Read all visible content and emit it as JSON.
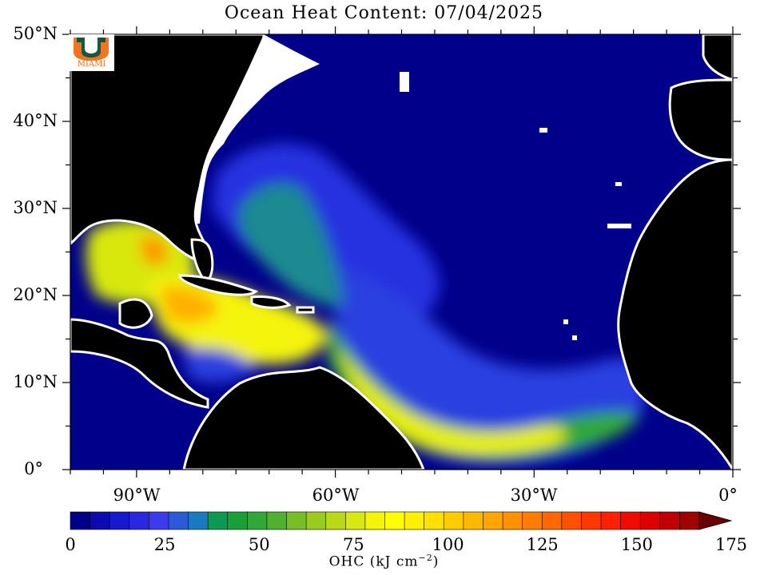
{
  "title": "Ocean Heat Content: 07/04/2025",
  "logo": {
    "text": "MIAMI",
    "primary_color": "#00543a",
    "accent_color": "#f47321"
  },
  "map": {
    "lat_range": [
      0,
      50
    ],
    "lon_range": [
      -100,
      0
    ],
    "lat_labels": [
      "50°N",
      "40°N",
      "30°N",
      "20°N",
      "10°N",
      "0°"
    ],
    "lon_labels": [
      "90°W",
      "60°W",
      "30°W",
      "0°"
    ],
    "land_color": "#000000",
    "coast_color": "#ffffff"
  },
  "colorbar": {
    "title_main": "OHC (kJ cm",
    "title_exp": "−2",
    "title_end": ")",
    "min": 0,
    "max": 175,
    "step": 5,
    "tick_labels": [
      "0",
      "25",
      "50",
      "75",
      "100",
      "125",
      "150",
      "175"
    ],
    "colors": [
      "#00008a",
      "#0a0ab0",
      "#1818d0",
      "#2828e0",
      "#3a3aee",
      "#2a5ad8",
      "#1a7ac0",
      "#0a9a50",
      "#19a038",
      "#30a838",
      "#50b030",
      "#78be28",
      "#98cc20",
      "#b8d818",
      "#d8e810",
      "#f4f40a",
      "#ffff00",
      "#fff000",
      "#ffe000",
      "#ffcc00",
      "#ffb800",
      "#ffa400",
      "#ff9000",
      "#ff7c00",
      "#ff6800",
      "#ff5000",
      "#ff3800",
      "#ff2000",
      "#f00a00",
      "#dc0000",
      "#c00000",
      "#a00000"
    ]
  }
}
